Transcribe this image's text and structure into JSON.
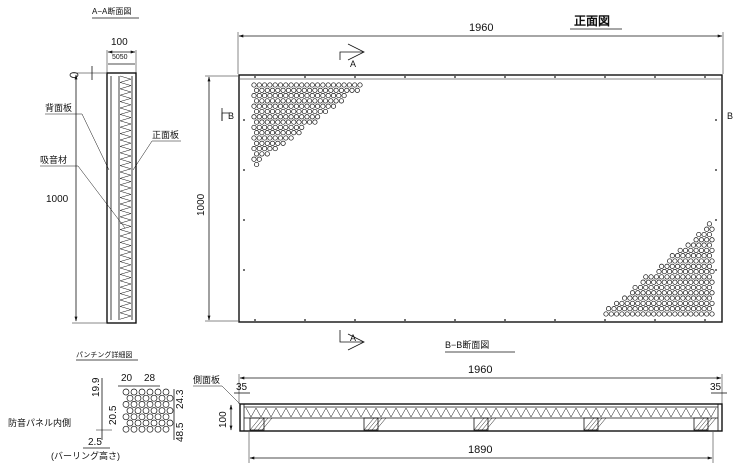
{
  "front_view": {
    "title": "正面図",
    "width_dim": "1960",
    "height_dim": "1000",
    "section_aa_label": "A",
    "section_bb_label": "B"
  },
  "section_aa": {
    "title": "A−A断面図",
    "dim_total": "100",
    "dim_halves": "5050",
    "height_dim": "1000",
    "label_back": "背面板",
    "label_absorb": "吸音材",
    "label_front": "正面板"
  },
  "section_bb": {
    "title": "B−B断面図",
    "dim_total": "1960",
    "dim_left": "35",
    "dim_right": "35",
    "dim_inner": "1890",
    "dim_height": "100",
    "label_side": "側面板"
  },
  "punching": {
    "title": "パンチング詳細図",
    "dim_pitch_a": "20",
    "dim_pitch_b": "28",
    "dim_v1": "19.9",
    "dim_v2": "20.5",
    "dim_v3": "24.3",
    "dim_v4": "48.5",
    "dim_burr": "2.5",
    "label_inner": "防音パネル内側",
    "label_burr": "(バーリング高さ)"
  }
}
